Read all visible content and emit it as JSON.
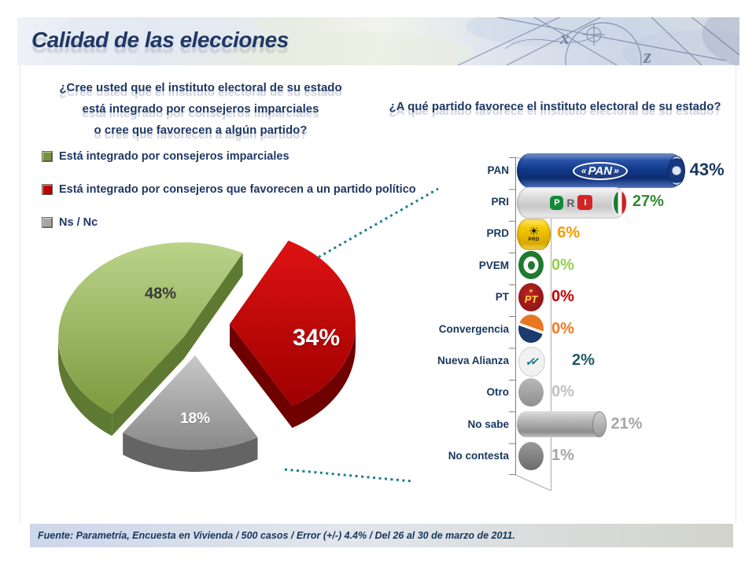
{
  "header": {
    "title": "Calidad de las elecciones"
  },
  "left_panel": {
    "question_line1": "¿Cree usted que el instituto electoral de su estado",
    "question_line2": "está integrado por consejeros imparciales",
    "question_line3": "o cree que favorecen a algún partido?",
    "legend": [
      {
        "label": "Está integrado por consejeros imparciales",
        "color": "#77933C"
      },
      {
        "label": "Está integrado por consejeros que favorecen a un partido político",
        "color": "#C00000"
      },
      {
        "label": "Ns / Nc",
        "color": "#A6A6A6"
      }
    ]
  },
  "right_panel": {
    "question": "¿A qué partido favorece el instituto electoral de su estado?"
  },
  "logos": {
    "pan": "PAN",
    "pri_p": "P",
    "pri_r": "R",
    "pri_i": "I",
    "prd": "PRD",
    "pt": "PT"
  },
  "icons": {
    "pan_chevron_left": "«",
    "pan_chevron_right": "»",
    "prd_sun": "☀",
    "pt_star": "★",
    "na_check": "✓"
  },
  "footer": {
    "source": "Fuente: Parametría, Encuesta en Vivienda / 500 casos / Error (+/-) 4.4% / Del 26 al 30 de marzo de 2011."
  },
  "chart_data": [
    {
      "type": "pie",
      "style": "3d-exploded",
      "title": "¿Cree usted que el instituto electoral de su estado está integrado por consejeros imparciales o cree que favorecen a algún partido?",
      "labels": [
        "Está integrado por consejeros imparciales",
        "Está integrado por consejeros que favorecen a un partido político",
        "Ns / Nc"
      ],
      "values": [
        48,
        34,
        18
      ],
      "value_labels": [
        "48%",
        "34%",
        "18%"
      ],
      "colors": [
        "#9BBB59",
        "#C00000",
        "#A6A6A6"
      ],
      "label_colors": [
        "#3A3A3A",
        "#FFFFFF",
        "#FFFFFF"
      ],
      "legend_position": "upper-left"
    },
    {
      "type": "bar",
      "orientation": "horizontal",
      "title": "¿A qué partido favorece el instituto electoral de su estado?",
      "categories": [
        "PAN",
        "PRI",
        "PRD",
        "PVEM",
        "PT",
        "Convergencia",
        "Nueva Alianza",
        "Otro",
        "No sabe",
        "No contesta"
      ],
      "values": [
        43,
        27,
        6,
        0,
        0,
        0,
        2,
        0,
        21,
        1
      ],
      "value_labels": [
        "43%",
        "27%",
        "6%",
        "0%",
        "0%",
        "0%",
        "2%",
        "0%",
        "21%",
        "1%"
      ],
      "value_label_colors": [
        "#17375E",
        "#2E8B2E",
        "#F59B00",
        "#92D050",
        "#C00000",
        "#F47920",
        "#1D5868",
        "#C0C0C0",
        "#A6A6A6",
        "#A6A6A6"
      ],
      "xlim": [
        0,
        45
      ],
      "grid": "single-zero-gridline"
    }
  ]
}
